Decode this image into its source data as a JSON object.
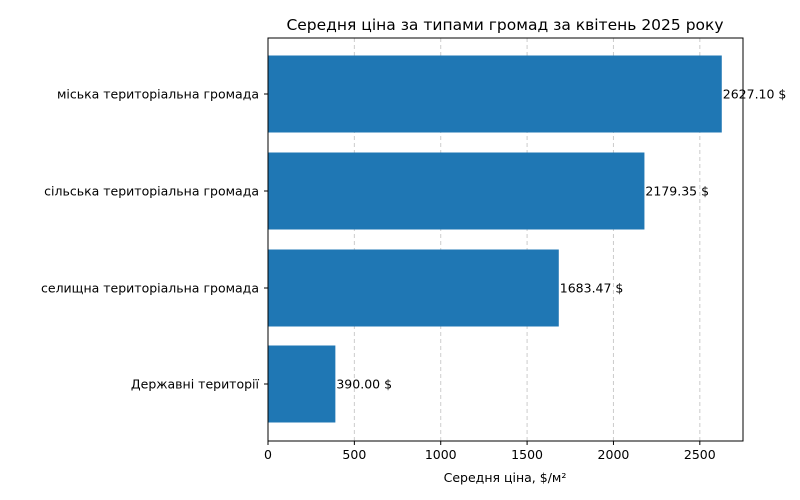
{
  "chart_data": {
    "type": "bar",
    "orientation": "horizontal",
    "title": "Середня ціна за типами громад за квітень 2025 року",
    "xlabel": "Середня ціна, $/м²",
    "ylabel": "",
    "categories": [
      "міська територіальна громада",
      "сільська територіальна громада",
      "селищна територіальна громада",
      "Державні території"
    ],
    "values": [
      2627.1,
      2179.35,
      1683.47,
      390.0
    ],
    "data_labels": [
      "2627.10 $",
      "2179.35 $",
      "1683.47 $",
      "390.00 $"
    ],
    "xlim": [
      0,
      2750
    ],
    "xticks": [
      0,
      500,
      1000,
      1500,
      2000,
      2500
    ],
    "xtick_labels": [
      "0",
      "500",
      "1000",
      "1500",
      "2000",
      "2500"
    ],
    "grid": "x-axis dashed",
    "legend": "none",
    "bar_color": "#1f77b4",
    "grid_color": "#cccccc"
  }
}
